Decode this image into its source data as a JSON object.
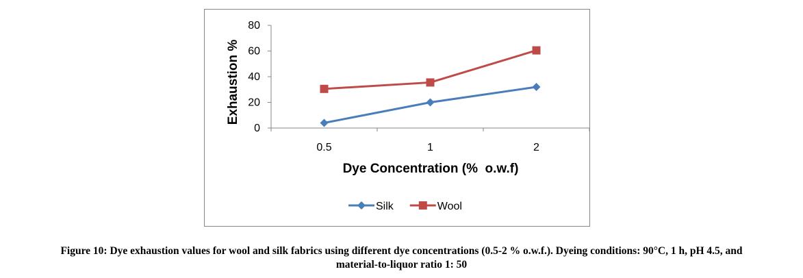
{
  "chart_data": {
    "type": "line",
    "categories": [
      "0.5",
      "1",
      "2"
    ],
    "series": [
      {
        "name": "Silk",
        "values": [
          4,
          20,
          32
        ],
        "color": "#4A7EBB",
        "marker": "diamond"
      },
      {
        "name": "Wool",
        "values": [
          30.5,
          35.5,
          60.5
        ],
        "color": "#BE4B48",
        "marker": "square"
      }
    ],
    "xlabel": "Dye Concentration (%  o.w.f)",
    "ylabel": "Exhaustion %",
    "ylim": [
      0,
      80
    ],
    "yticks": [
      "0",
      "20",
      "40",
      "60",
      "80"
    ],
    "grid": false,
    "legend_position": "bottom"
  },
  "caption": {
    "line1": "Figure 10: Dye exhaustion values for wool and silk fabrics using different dye concentrations (0.5-2 % o.w.f.). Dyeing conditions: 90°C, 1 h, pH 4.5, and",
    "line2": "material-to-liquor ratio 1: 50"
  }
}
